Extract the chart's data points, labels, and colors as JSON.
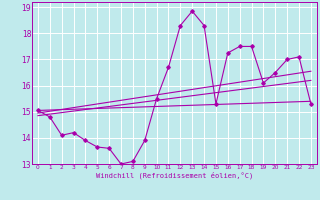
{
  "xlabel": "Windchill (Refroidissement éolien,°C)",
  "bg_color": "#c0eaec",
  "grid_color": "#ffffff",
  "line_color": "#aa00aa",
  "xlim": [
    -0.5,
    23.5
  ],
  "ylim": [
    13,
    19.2
  ],
  "xticks": [
    0,
    1,
    2,
    3,
    4,
    5,
    6,
    7,
    8,
    9,
    10,
    11,
    12,
    13,
    14,
    15,
    16,
    17,
    18,
    19,
    20,
    21,
    22,
    23
  ],
  "yticks": [
    13,
    14,
    15,
    16,
    17,
    18,
    19
  ],
  "main_x": [
    0,
    1,
    2,
    3,
    4,
    5,
    6,
    7,
    8,
    9,
    10,
    11,
    12,
    13,
    14,
    15,
    16,
    17,
    18,
    19,
    20,
    21,
    22,
    23
  ],
  "main_y": [
    15.05,
    14.8,
    14.1,
    14.2,
    13.9,
    13.65,
    13.6,
    13.0,
    13.1,
    13.9,
    15.5,
    16.7,
    18.3,
    18.85,
    18.3,
    15.3,
    17.25,
    17.5,
    17.5,
    16.1,
    16.5,
    17.0,
    17.1,
    15.3
  ],
  "trend1_x": [
    0,
    23
  ],
  "trend1_y": [
    15.05,
    15.4
  ],
  "trend2_x": [
    0,
    23
  ],
  "trend2_y": [
    14.85,
    16.2
  ],
  "trend3_x": [
    0,
    23
  ],
  "trend3_y": [
    14.95,
    16.55
  ]
}
